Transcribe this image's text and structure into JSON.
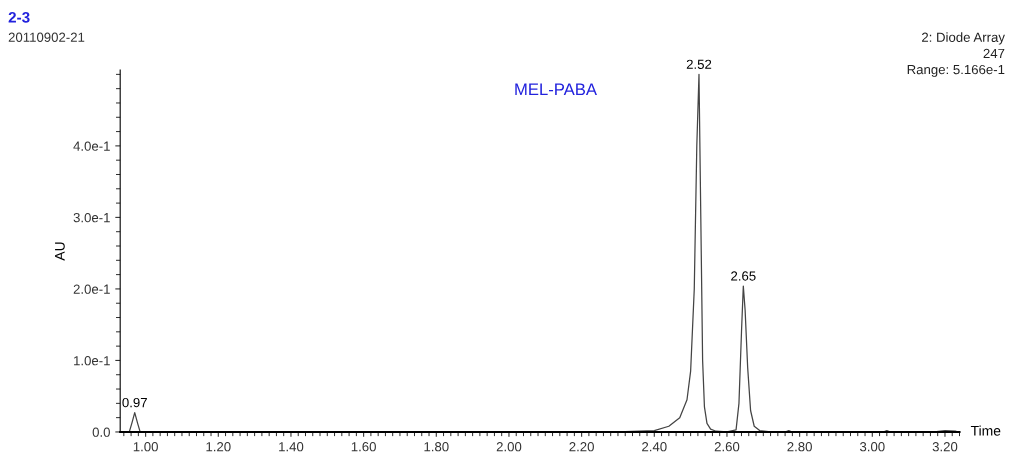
{
  "chart_data": {
    "type": "line",
    "title": "2-3",
    "subtitle": "20110902-21",
    "xlabel": "Time",
    "ylabel": "AU",
    "xlim": [
      0.93,
      3.24
    ],
    "ylim": [
      0,
      0.506
    ],
    "xticks": [
      {
        "value": 1.0,
        "label": "1.00"
      },
      {
        "value": 1.2,
        "label": "1.20"
      },
      {
        "value": 1.4,
        "label": "1.40"
      },
      {
        "value": 1.6,
        "label": "1.60"
      },
      {
        "value": 1.8,
        "label": "1.80"
      },
      {
        "value": 2.0,
        "label": "2.00"
      },
      {
        "value": 2.2,
        "label": "2.20"
      },
      {
        "value": 2.4,
        "label": "2.40"
      },
      {
        "value": 2.6,
        "label": "2.60"
      },
      {
        "value": 2.8,
        "label": "2.80"
      },
      {
        "value": 3.0,
        "label": "3.00"
      },
      {
        "value": 3.2,
        "label": "3.20"
      }
    ],
    "yticks": [
      {
        "value": 0,
        "label": "0.0"
      },
      {
        "value": 0.1,
        "label": "1.0e-1"
      },
      {
        "value": 0.2,
        "label": "2.0e-1"
      },
      {
        "value": 0.3,
        "label": "3.0e-1"
      },
      {
        "value": 0.4,
        "label": "4.0e-1"
      }
    ],
    "grid": false,
    "legend": false,
    "marker": "none",
    "line_style": "solid",
    "series": [
      {
        "color": "#444444",
        "x": [
          0.93,
          0.955,
          0.962,
          0.97,
          0.978,
          0.985,
          1.2,
          1.6,
          2.0,
          2.3,
          2.4,
          2.44,
          2.47,
          2.49,
          2.5,
          2.51,
          2.517,
          2.523,
          2.528,
          2.533,
          2.538,
          2.545,
          2.555,
          2.57,
          2.6,
          2.625,
          2.633,
          2.64,
          2.645,
          2.65,
          2.657,
          2.665,
          2.675,
          2.69,
          2.72,
          2.76,
          2.77,
          2.78,
          2.9,
          3.03,
          3.04,
          3.05,
          3.17,
          3.2,
          3.23,
          3.24
        ],
        "values": [
          0,
          0,
          0.012,
          0.027,
          0.012,
          0,
          0,
          0,
          0,
          0,
          0.002,
          0.008,
          0.02,
          0.045,
          0.085,
          0.2,
          0.4,
          0.5,
          0.3,
          0.1,
          0.035,
          0.012,
          0.004,
          0.001,
          0,
          0.003,
          0.04,
          0.14,
          0.204,
          0.17,
          0.09,
          0.03,
          0.008,
          0.002,
          0,
          0,
          0.002,
          0,
          0,
          0,
          0.002,
          0,
          0,
          0.002,
          0.001,
          0
        ]
      }
    ],
    "annotations": [
      {
        "text": "0.97",
        "x": 0.97,
        "y": 0.027
      },
      {
        "text": "2.52",
        "x": 2.523,
        "y": 0.5
      },
      {
        "text": "2.65",
        "x": 2.645,
        "y": 0.204
      },
      "MEL-PABA",
      "2: Diode Array",
      "247",
      "Range: 5.166e-1"
    ]
  }
}
